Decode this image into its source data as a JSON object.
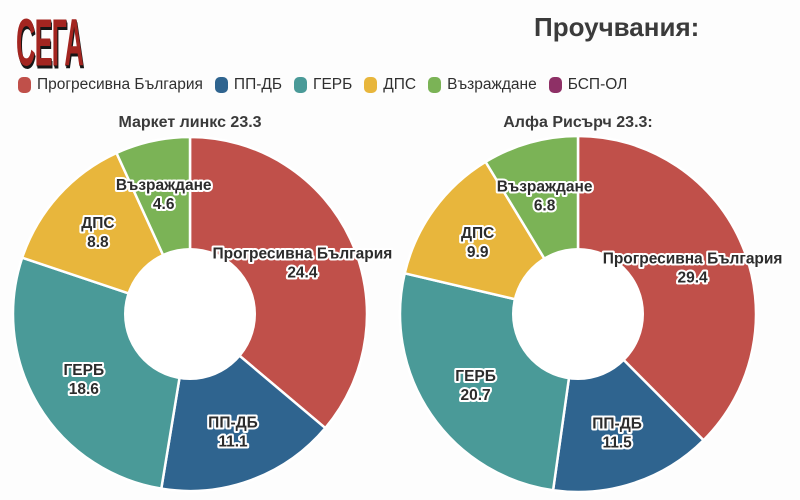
{
  "logo": "СЕГА",
  "header": {
    "title": "Проучвания:"
  },
  "legend": [
    {
      "label": "Прогресивна България",
      "color": "#c0504a"
    },
    {
      "label": "ПП-ДБ",
      "color": "#2f648f"
    },
    {
      "label": "ГЕРБ",
      "color": "#4a9a98"
    },
    {
      "label": "ДПС",
      "color": "#e8b63c"
    },
    {
      "label": "Възраждане",
      "color": "#7bb356"
    },
    {
      "label": "БСП-ОЛ",
      "color": "#8e3066"
    }
  ],
  "chart_data": [
    {
      "type": "pie",
      "donut": true,
      "title": "Маркет линкс 23.3",
      "labels": [
        "Прогресивна България",
        "ПП-ДБ",
        "ГЕРБ",
        "ДПС",
        "Възраждане"
      ],
      "values": [
        24.4,
        11.1,
        18.6,
        8.8,
        4.6
      ],
      "colors": [
        "#c0504a",
        "#2f648f",
        "#4a9a98",
        "#e8b63c",
        "#7bb356"
      ],
      "start_angle_deg": 0,
      "direction": "clockwise",
      "slice_separator_color": "#ffffff"
    },
    {
      "type": "pie",
      "donut": true,
      "title": "Алфа Рисърч 23.3:",
      "labels": [
        "Прогресивна България",
        "ПП-ДБ",
        "ГЕРБ",
        "ДПС",
        "Възраждане"
      ],
      "values": [
        29.4,
        11.5,
        20.7,
        9.9,
        6.8
      ],
      "colors": [
        "#c0504a",
        "#2f648f",
        "#4a9a98",
        "#e8b63c",
        "#7bb356"
      ],
      "start_angle_deg": 0,
      "direction": "clockwise",
      "slice_separator_color": "#ffffff"
    }
  ]
}
